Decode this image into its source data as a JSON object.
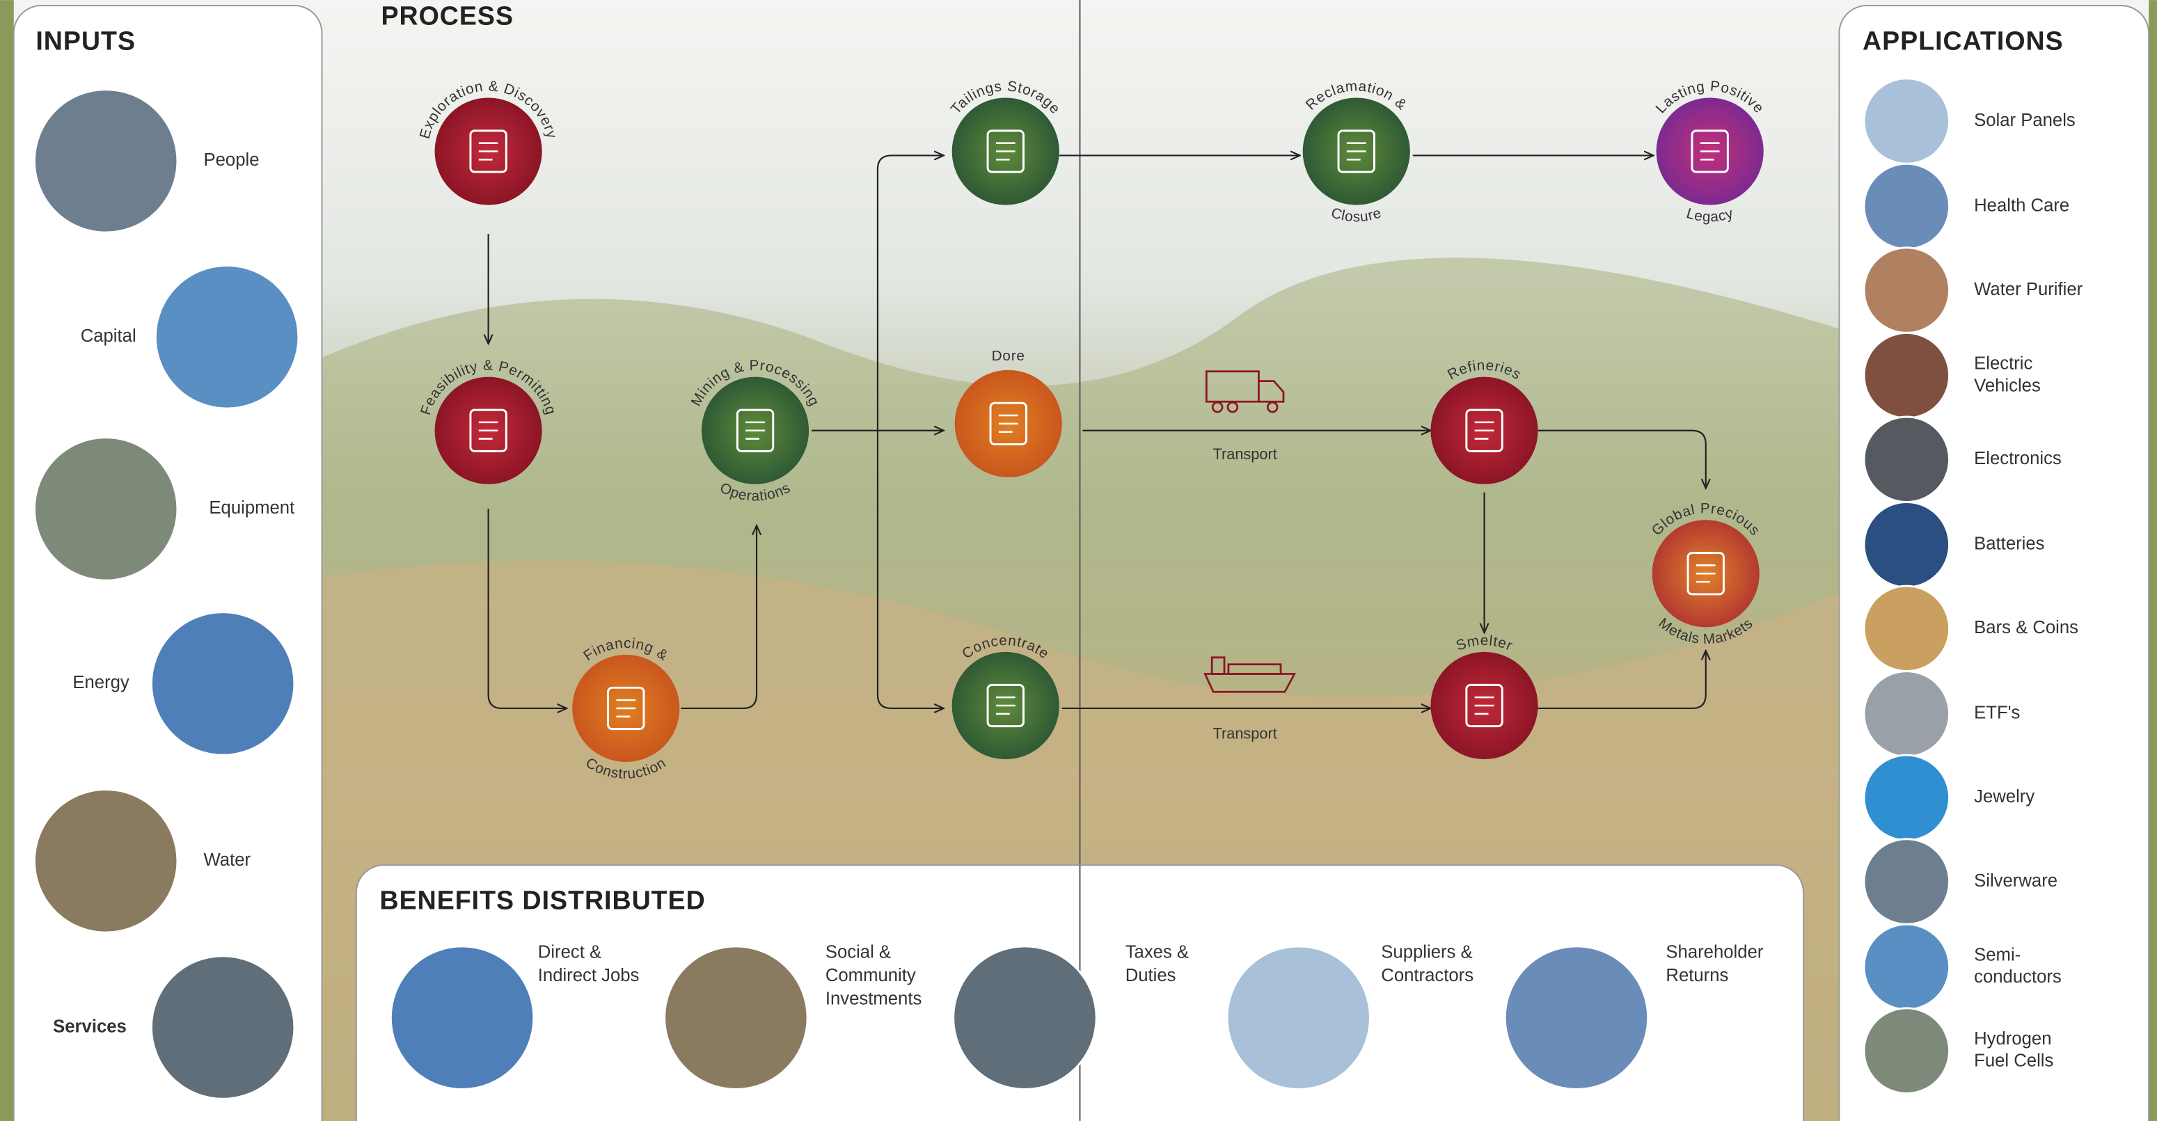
{
  "inputs": {
    "title": "INPUTS",
    "items": [
      "People",
      "Capital",
      "Equipment",
      "Energy",
      "Water",
      "Services"
    ]
  },
  "process": {
    "title": "PROCESS",
    "nodes": [
      {
        "top": "Exploration & Discovery"
      },
      {
        "top": "Feasibility & Permitting"
      },
      {
        "top": "Financing &",
        "bottom": "Construction"
      },
      {
        "top": "Mining & Processing",
        "bottom": "Operations"
      },
      {
        "top": "Tailings Storage"
      },
      {
        "top": "Dore"
      },
      {
        "top": "Concentrate"
      },
      {
        "top": "Reclamation &",
        "bottom": "Closure"
      },
      {
        "top": "Lasting Positive",
        "bottom": "Legacy"
      },
      {
        "top": "Refineries"
      },
      {
        "top": "Smelter"
      },
      {
        "top": "Global Precious",
        "bottom": "Metals Markets"
      }
    ],
    "transport_labels": [
      "Transport",
      "Transport"
    ]
  },
  "benefits": {
    "title": "BENEFITS DISTRIBUTED",
    "items": [
      [
        "Direct &",
        "Indirect Jobs"
      ],
      [
        "Social &",
        "Community",
        "Investments"
      ],
      [
        "Taxes &",
        "Duties"
      ],
      [
        "Suppliers &",
        "Contractors"
      ],
      [
        "Shareholder",
        "Returns"
      ]
    ]
  },
  "applications": {
    "title": "APPLICATIONS",
    "items": [
      [
        "Solar Panels"
      ],
      [
        "Health Care"
      ],
      [
        "Water Purifier"
      ],
      [
        "Electric",
        "Vehicles"
      ],
      [
        "Electronics"
      ],
      [
        "Batteries"
      ],
      [
        "Bars & Coins"
      ],
      [
        "ETF's"
      ],
      [
        "Jewelry"
      ],
      [
        "Silverware"
      ],
      [
        "Semi-",
        "conductors"
      ],
      [
        "Hydrogen",
        "Fuel Cells"
      ]
    ]
  }
}
